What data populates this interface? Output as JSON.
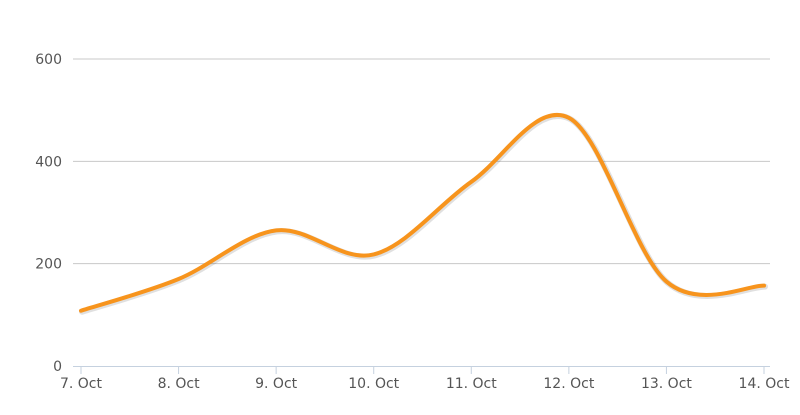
{
  "chart_data": {
    "type": "line",
    "title": "",
    "xlabel": "",
    "ylabel": "",
    "categories": [
      "7. Oct",
      "8. Oct",
      "9. Oct",
      "10. Oct",
      "11. Oct",
      "12. Oct",
      "13. Oct",
      "14. Oct"
    ],
    "series": [
      {
        "values": [
          108,
          170,
          265,
          218,
          360,
          485,
          165,
          157
        ]
      }
    ],
    "ylim": [
      0,
      600
    ],
    "yticks": [
      "0",
      "200",
      "400",
      "600"
    ],
    "grid": true,
    "legend": "none",
    "colors": {
      "series": "#f7941d",
      "grid": "#c8c8c8",
      "axis": "#c5d1df",
      "label": "#555555"
    }
  }
}
